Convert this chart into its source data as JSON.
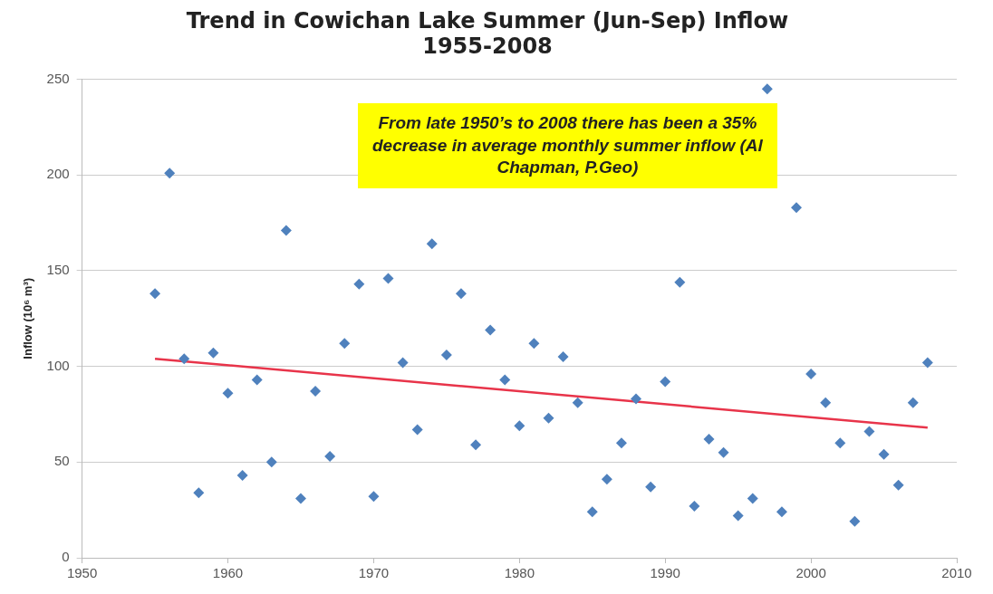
{
  "chart_data": {
    "type": "scatter",
    "title": "Trend in Cowichan Lake Summer (Jun-Sep) Inflow\n1955-2008",
    "ylabel": "Inflow (10⁶ m³)",
    "annotations": [
      "From late 1950’s to 2008 there has been a 35% decrease in average monthly summer inflow (Al Chapman, P.Geo)"
    ],
    "series": [
      {
        "color": "#4f81bd",
        "x": [
          1955,
          1956,
          1957,
          1958,
          1959,
          1960,
          1961,
          1962,
          1963,
          1964,
          1965,
          1966,
          1967,
          1968,
          1969,
          1970,
          1971,
          1972,
          1973,
          1974,
          1975,
          1976,
          1977,
          1978,
          1979,
          1980,
          1981,
          1982,
          1983,
          1984,
          1985,
          1986,
          1987,
          1988,
          1989,
          1990,
          1991,
          1992,
          1993,
          1994,
          1995,
          1996,
          1997,
          1998,
          1999,
          2000,
          2001,
          2002,
          2003,
          2004,
          2005,
          2006,
          2007,
          2008
        ],
        "values": [
          138,
          201,
          104,
          34,
          107,
          86,
          43,
          93,
          50,
          171,
          31,
          87,
          53,
          112,
          143,
          32,
          146,
          102,
          67,
          164,
          106,
          138,
          59,
          119,
          93,
          69,
          112,
          73,
          105,
          81,
          24,
          41,
          60,
          83,
          37,
          92,
          144,
          27,
          62,
          55,
          22,
          31,
          245,
          24,
          183,
          96,
          81,
          60,
          19,
          66,
          54,
          38,
          81,
          102
        ]
      },
      {
        "type": "line",
        "color": "#e8344a",
        "x": [
          1955,
          2008
        ],
        "values": [
          104,
          68
        ],
        "marker": "none"
      }
    ],
    "xlim": [
      1950,
      2010
    ],
    "xticks": [
      1950,
      1960,
      1970,
      1980,
      1990,
      2000,
      2010
    ],
    "ylim": [
      0,
      250
    ],
    "yticks": [
      0,
      50,
      100,
      150,
      200,
      250
    ],
    "grid": "y",
    "legend": false,
    "marker": "diamond"
  }
}
